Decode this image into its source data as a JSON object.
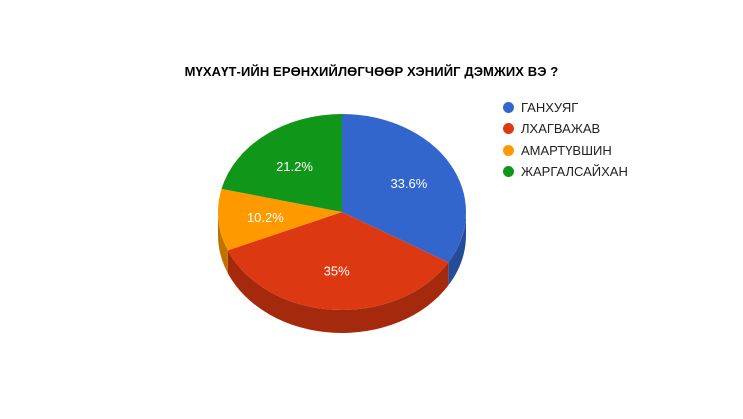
{
  "chart_data": {
    "type": "pie",
    "title": "МҮХАҮТ-ИЙН ЕРӨНХИЙЛӨГЧӨӨР ХЭНИЙГ ДЭМЖИХ ВЭ ?",
    "three_d": true,
    "legend_position": "right",
    "slices": [
      {
        "label": "ГАНХУЯГ",
        "value": 33.6,
        "value_label": "33.6%",
        "color": "#3366cc",
        "side_color": "#254c99"
      },
      {
        "label": "ЛХАГВАЖАВ",
        "value": 35,
        "value_label": "35%",
        "color": "#dc3912",
        "side_color": "#a52a0d"
      },
      {
        "label": "АМАРТҮВШИН",
        "value": 10.2,
        "value_label": "10.2%",
        "color": "#ff9900",
        "side_color": "#bf7200"
      },
      {
        "label": "ЖАРГАЛСАЙХАН",
        "value": 21.2,
        "value_label": "21.2%",
        "color": "#109618",
        "side_color": "#0c7012"
      }
    ]
  }
}
